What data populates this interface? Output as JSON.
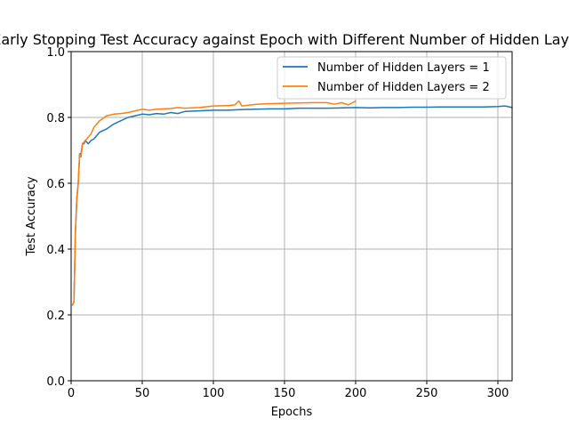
{
  "chart_data": {
    "type": "line",
    "title": "Early Stopping Test Accuracy against Epoch with Different Number of Hidden Layers",
    "xlabel": "Epochs",
    "ylabel": "Test Accuracy",
    "xlim": [
      0,
      310
    ],
    "ylim": [
      0.0,
      1.0
    ],
    "xticks": [
      "0",
      "50",
      "100",
      "150",
      "200",
      "250",
      "300"
    ],
    "yticks": [
      "0.0",
      "0.2",
      "0.4",
      "0.6",
      "0.8",
      "1.0"
    ],
    "grid": true,
    "legend_position": "top-right",
    "series": [
      {
        "name": "Number of Hidden Layers = 1",
        "color": "#1f77b4",
        "x": [
          1,
          2,
          3,
          4,
          5,
          6,
          7,
          8,
          9,
          10,
          12,
          14,
          16,
          18,
          20,
          25,
          30,
          35,
          40,
          45,
          50,
          55,
          60,
          65,
          70,
          75,
          80,
          90,
          100,
          110,
          120,
          130,
          140,
          150,
          160,
          170,
          180,
          190,
          200,
          210,
          220,
          230,
          240,
          250,
          260,
          270,
          280,
          290,
          300,
          305,
          310
        ],
        "y": [
          0.23,
          0.24,
          0.45,
          0.55,
          0.6,
          0.69,
          0.69,
          0.72,
          0.72,
          0.73,
          0.72,
          0.73,
          0.735,
          0.745,
          0.755,
          0.765,
          0.78,
          0.79,
          0.8,
          0.805,
          0.81,
          0.808,
          0.812,
          0.81,
          0.815,
          0.812,
          0.818,
          0.82,
          0.822,
          0.822,
          0.824,
          0.825,
          0.826,
          0.826,
          0.828,
          0.828,
          0.828,
          0.829,
          0.83,
          0.829,
          0.83,
          0.83,
          0.831,
          0.831,
          0.832,
          0.832,
          0.832,
          0.832,
          0.833,
          0.835,
          0.83
        ]
      },
      {
        "name": "Number of Hidden Layers = 2",
        "color": "#ff7f0e",
        "x": [
          1,
          2,
          3,
          4,
          5,
          6,
          7,
          8,
          9,
          10,
          12,
          14,
          16,
          18,
          20,
          25,
          30,
          35,
          40,
          45,
          50,
          55,
          60,
          65,
          70,
          75,
          80,
          90,
          100,
          110,
          115,
          118,
          120,
          130,
          140,
          150,
          160,
          170,
          180,
          185,
          190,
          195,
          200
        ],
        "y": [
          0.23,
          0.24,
          0.45,
          0.56,
          0.6,
          0.69,
          0.68,
          0.72,
          0.725,
          0.73,
          0.74,
          0.75,
          0.77,
          0.78,
          0.79,
          0.805,
          0.81,
          0.812,
          0.815,
          0.82,
          0.825,
          0.822,
          0.825,
          0.826,
          0.827,
          0.83,
          0.828,
          0.83,
          0.835,
          0.836,
          0.838,
          0.85,
          0.835,
          0.84,
          0.842,
          0.843,
          0.844,
          0.845,
          0.845,
          0.84,
          0.845,
          0.838,
          0.85
        ]
      }
    ]
  }
}
